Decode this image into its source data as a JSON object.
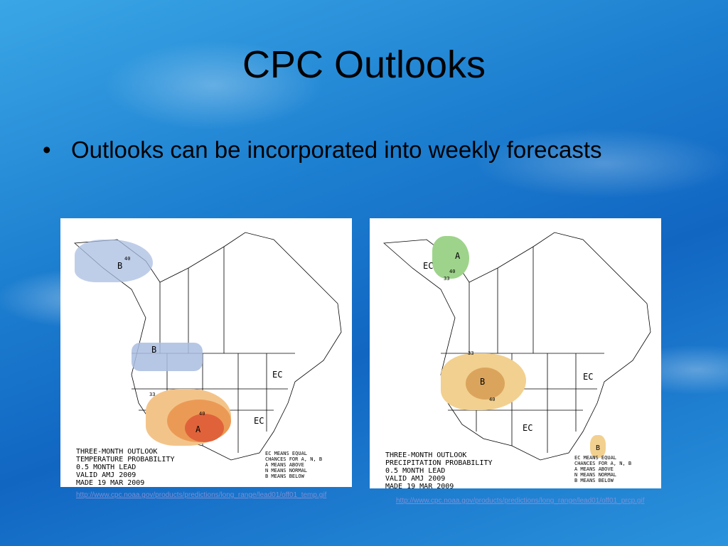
{
  "slide": {
    "title": "CPC Outlooks",
    "bullet": "Outlooks can be incorporated into weekly forecasts"
  },
  "maps": [
    {
      "caption": "THREE-MONTH OUTLOOK\nTEMPERATURE PROBABILITY\n0.5 MONTH LEAD\nVALID AMJ 2009\nMADE 19 MAR 2009",
      "legend": "EC MEANS EQUAL\nCHANCES FOR A, N, B\nA MEANS ABOVE\nN MEANS NORMAL\nB MEANS BELOW",
      "labels": {
        "b1": "B",
        "b2": "B",
        "a": "A",
        "ec": "EC",
        "ec2": "EC",
        "l40a": "40",
        "l40b": "40",
        "l33": "33"
      },
      "link": "http://www.cpc.noaa.gov/products/predictions/long_range/lead01/off01_temp.gif"
    },
    {
      "caption": "THREE-MONTH OUTLOOK\nPRECIPITATION PROBABILITY\n0.5 MONTH LEAD\nVALID AMJ 2009\nMADE 19 MAR 2009",
      "legend": "EC MEANS EQUAL\nCHANCES FOR A, N, B\nA MEANS ABOVE\nN MEANS NORMAL\nB MEANS BELOW",
      "labels": {
        "a": "A",
        "ec1": "EC",
        "b": "B",
        "b2": "B",
        "ec2": "EC",
        "ec3": "EC",
        "l40a": "40",
        "l40b": "40",
        "l33a": "33",
        "l33b": "33"
      },
      "link": "http://www.cpc.noaa.gov/products/predictions/long_range/lead01/off01_prcp.gif"
    }
  ],
  "colors": {
    "below_temp": "#a9bde0",
    "above_temp_light": "#f3c48a",
    "above_temp_mid": "#eb9a55",
    "above_temp_dark": "#e0623a",
    "above_prcp": "#9ed38b",
    "below_prcp_light": "#f2d08f",
    "below_prcp_mid": "#dba45c"
  }
}
